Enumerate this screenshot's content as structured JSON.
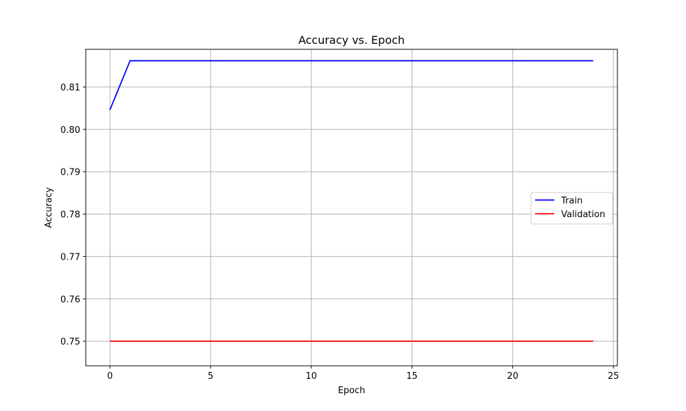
{
  "chart_data": {
    "type": "line",
    "title": "Accuracy vs. Epoch",
    "xlabel": "Epoch",
    "ylabel": "Accuracy",
    "x": [
      0,
      1,
      2,
      3,
      4,
      5,
      6,
      7,
      8,
      9,
      10,
      11,
      12,
      13,
      14,
      15,
      16,
      17,
      18,
      19,
      20,
      21,
      22,
      23,
      24
    ],
    "series": [
      {
        "name": "Train",
        "color": "#0000ff",
        "values": [
          0.8046,
          0.8162,
          0.8162,
          0.8162,
          0.8162,
          0.8162,
          0.8162,
          0.8162,
          0.8162,
          0.8162,
          0.8162,
          0.8162,
          0.8162,
          0.8162,
          0.8162,
          0.8162,
          0.8162,
          0.8162,
          0.8162,
          0.8162,
          0.8162,
          0.8162,
          0.8162,
          0.8162,
          0.8162
        ]
      },
      {
        "name": "Validation",
        "color": "#ff0000",
        "values": [
          0.75,
          0.75,
          0.75,
          0.75,
          0.75,
          0.75,
          0.75,
          0.75,
          0.75,
          0.75,
          0.75,
          0.75,
          0.75,
          0.75,
          0.75,
          0.75,
          0.75,
          0.75,
          0.75,
          0.75,
          0.75,
          0.75,
          0.75,
          0.75,
          0.75
        ]
      }
    ],
    "xlim": [
      -1.2,
      25.2
    ],
    "ylim": [
      0.7442,
      0.8189
    ],
    "xticks": [
      0,
      5,
      10,
      15,
      20,
      25
    ],
    "xtick_labels": [
      "0",
      "5",
      "10",
      "15",
      "20",
      "25"
    ],
    "yticks": [
      0.75,
      0.76,
      0.77,
      0.78,
      0.79,
      0.8,
      0.81
    ],
    "ytick_labels": [
      "0.75",
      "0.76",
      "0.77",
      "0.78",
      "0.79",
      "0.80",
      "0.81"
    ],
    "grid": true,
    "legend_position": "center-right"
  }
}
